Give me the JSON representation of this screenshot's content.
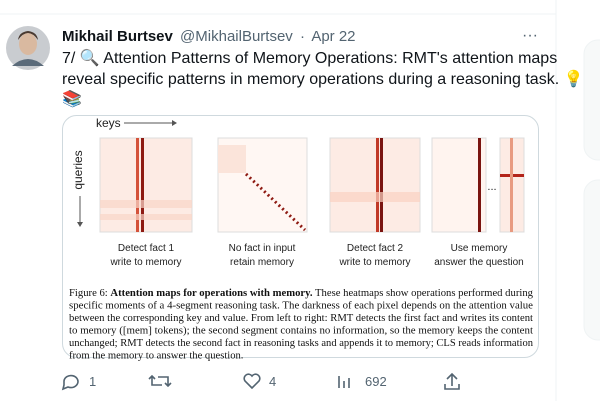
{
  "tweet": {
    "author": {
      "name": "Mikhail Burtsev",
      "handle": "@MikhailBurtsev",
      "separator": "·",
      "date": "Apr 22"
    },
    "text_lines": [
      "7/ 🔍 Attention Patterns of Memory Operations: RMT's attention maps",
      "reveal specific patterns in memory operations during a reasoning task. 💡",
      "📚"
    ],
    "more": "···",
    "figure": {
      "keys_label": "keys",
      "queries_label": "queries",
      "ellipsis": "...",
      "panels": [
        {
          "line1": "Detect fact 1",
          "line2": "write to memory"
        },
        {
          "line1": "No fact in input",
          "line2": "retain memory"
        },
        {
          "line1": "Detect fact 2",
          "line2": "write to memory"
        },
        {
          "line1": "Use memory",
          "line2": "answer the question"
        }
      ],
      "caption": {
        "prefix": "Figure 6:",
        "bold_title": "Attention maps for operations with memory.",
        "first_line_rest": "These heatmaps show operations performed during",
        "lines": [
          "specific moments of a 4-segment reasoning task. The darkness of each pixel depends on the attention value",
          "between the corresponding key and value. From left to right: RMT detects the first fact and writes its content",
          "to memory ([mem] tokens); the second segment contains no information, so the memory keeps the content",
          "unchanged; RMT detects the second fact in reasoning tasks and appends it to memory; CLS reads information",
          "from the memory to answer the question."
        ]
      }
    },
    "actions": {
      "replies": "1",
      "likes": "4",
      "views": "692"
    }
  }
}
